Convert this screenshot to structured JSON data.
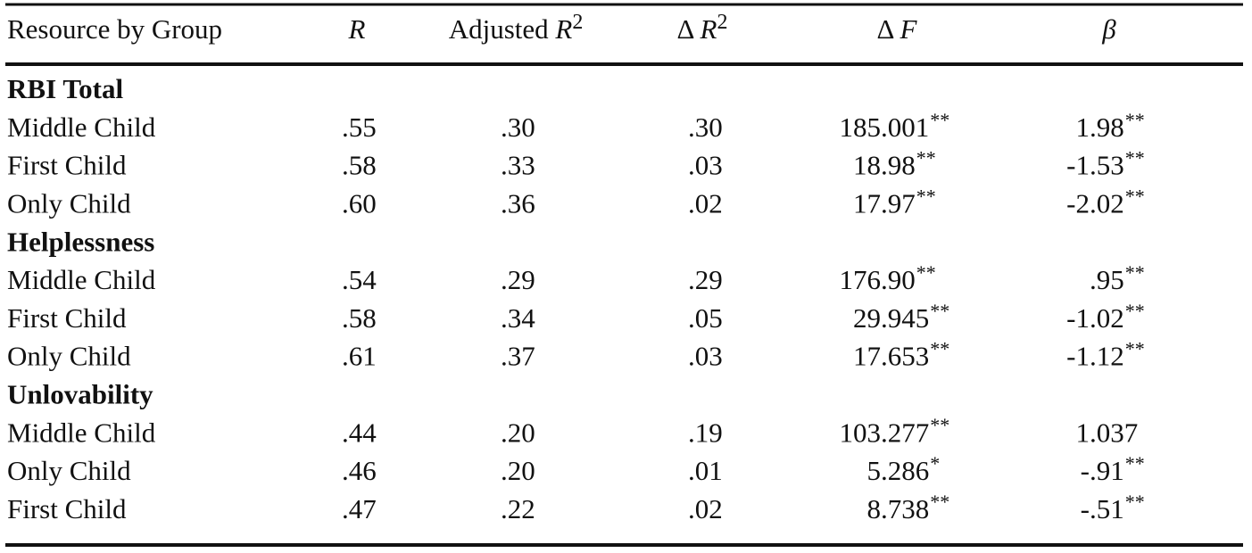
{
  "table": {
    "headers": [
      {
        "text": "Resource by Group"
      },
      {
        "italic": "R"
      },
      {
        "text": "Adjusted ",
        "italic": "R",
        "sup": "2"
      },
      {
        "text": "Δ ",
        "italic": "R",
        "sup": "2"
      },
      {
        "text": "Δ ",
        "italic": "F"
      },
      {
        "italic": "β"
      }
    ],
    "groups": [
      {
        "title": "RBI Total",
        "rows": [
          {
            "label": "Middle Child",
            "cells": [
              {
                "value": ".55"
              },
              {
                "value": ".30"
              },
              {
                "value": ".30"
              },
              {
                "value": "185.001",
                "sig": "**"
              },
              {
                "value": "1.98",
                "sig": "**"
              }
            ]
          },
          {
            "label": "First Child",
            "cells": [
              {
                "value": ".58"
              },
              {
                "value": ".33"
              },
              {
                "value": ".03"
              },
              {
                "value": "18.98",
                "sig": "**"
              },
              {
                "value": "-1.53",
                "sig": "**"
              }
            ]
          },
          {
            "label": "Only Child",
            "cells": [
              {
                "value": ".60"
              },
              {
                "value": ".36"
              },
              {
                "value": ".02"
              },
              {
                "value": "17.97",
                "sig": "**"
              },
              {
                "value": "-2.02",
                "sig": "**"
              }
            ]
          }
        ]
      },
      {
        "title": "Helplessness",
        "rows": [
          {
            "label": "Middle Child",
            "cells": [
              {
                "value": ".54"
              },
              {
                "value": ".29"
              },
              {
                "value": ".29"
              },
              {
                "value": "176.90",
                "sig": "**"
              },
              {
                "value": ".95",
                "sig": "**"
              }
            ]
          },
          {
            "label": "First Child",
            "cells": [
              {
                "value": ".58"
              },
              {
                "value": ".34"
              },
              {
                "value": ".05"
              },
              {
                "value": "29.945",
                "sig": "**"
              },
              {
                "value": "-1.02",
                "sig": "**"
              }
            ]
          },
          {
            "label": "Only Child",
            "cells": [
              {
                "value": ".61"
              },
              {
                "value": ".37"
              },
              {
                "value": ".03"
              },
              {
                "value": "17.653",
                "sig": "**"
              },
              {
                "value": "-1.12",
                "sig": "**"
              }
            ]
          }
        ]
      },
      {
        "title": "Unlovability",
        "rows": [
          {
            "label": "Middle Child",
            "cells": [
              {
                "value": ".44"
              },
              {
                "value": ".20"
              },
              {
                "value": ".19"
              },
              {
                "value": "103.277",
                "sig": "**"
              },
              {
                "value": "1.037"
              }
            ]
          },
          {
            "label": "Only Child",
            "cells": [
              {
                "value": ".46"
              },
              {
                "value": ".20"
              },
              {
                "value": ".01"
              },
              {
                "value": "5.286",
                "sig": "*"
              },
              {
                "value": "-.91",
                "sig": "**"
              }
            ]
          },
          {
            "label": "First Child",
            "cells": [
              {
                "value": ".47"
              },
              {
                "value": ".22"
              },
              {
                "value": ".02"
              },
              {
                "value": "8.738",
                "sig": "**"
              },
              {
                "value": "-.51",
                "sig": "**"
              }
            ]
          }
        ]
      }
    ]
  }
}
